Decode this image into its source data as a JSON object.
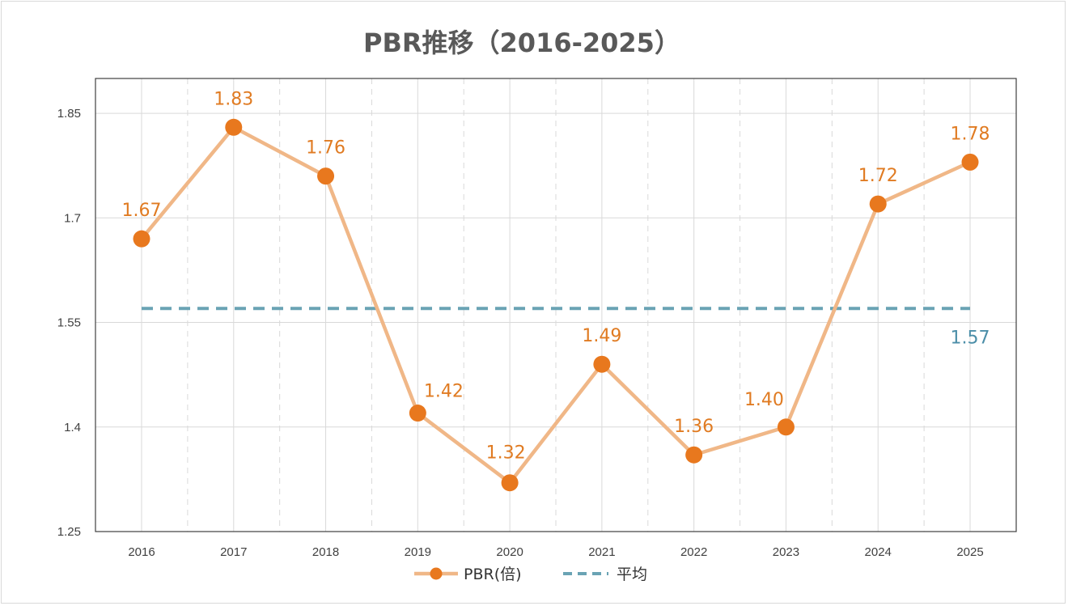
{
  "chart_data": {
    "type": "line",
    "title": "PBR推移（2016-2025）",
    "xlabel": "",
    "ylabel": "",
    "categories": [
      "2016",
      "2017",
      "2018",
      "2019",
      "2020",
      "2021",
      "2022",
      "2023",
      "2024",
      "2025"
    ],
    "series": [
      {
        "name": "PBR(倍)",
        "values": [
          1.67,
          1.83,
          1.76,
          1.42,
          1.32,
          1.49,
          1.36,
          1.4,
          1.72,
          1.78
        ],
        "labels": [
          "1.67",
          "1.83",
          "1.76",
          "1.42",
          "1.32",
          "1.49",
          "1.36",
          "1.40",
          "1.72",
          "1.78"
        ],
        "line_color": "#f0b787",
        "marker_color": "#e8781e",
        "label_color": "#e07b22"
      },
      {
        "name": "平均",
        "values": [
          1.57,
          1.57,
          1.57,
          1.57,
          1.57,
          1.57,
          1.57,
          1.57,
          1.57,
          1.57
        ],
        "label": "1.57",
        "line_color": "#6aa3b4",
        "label_color": "#4b8ea8"
      }
    ],
    "ylim": [
      1.25,
      1.9
    ],
    "yticks": [
      1.25,
      1.4,
      1.55,
      1.7,
      1.85
    ],
    "ytick_labels": [
      "1.25",
      "1.4",
      "1.55",
      "1.7",
      "1.85"
    ],
    "grid": true,
    "legend_position": "bottom-center"
  }
}
